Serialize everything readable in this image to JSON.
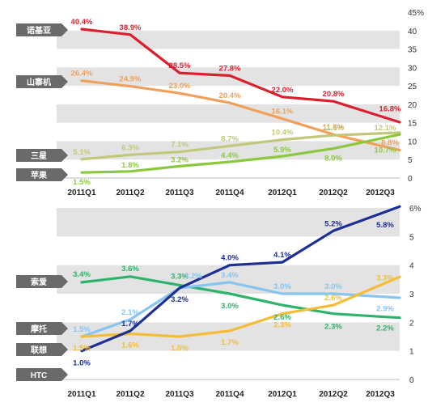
{
  "colors": {
    "band": "#e3e3e3",
    "tag_background": "#6a6a6a",
    "nokia": "#dc1f2e",
    "shanzhai": "#f0a05a",
    "samsung": "#c2c87a",
    "apple": "#8cc83c",
    "sony": "#2db36b",
    "moto": "#86c5ef",
    "lenovo": "#f5bd35",
    "htc": "#1c2f96"
  },
  "chart_data": [
    {
      "type": "line",
      "categories": [
        "2011Q1",
        "2011Q2",
        "2011Q3",
        "2011Q4",
        "2012Q1",
        "2012Q2",
        "2012Q3"
      ],
      "ylim": [
        0,
        45
      ],
      "yticks": [
        "0",
        "5",
        "10",
        "15",
        "20",
        "25",
        "30",
        "35",
        "40",
        "45%"
      ],
      "grid": "alternating bands",
      "legend": "left-side tags",
      "series": [
        {
          "name": "诺基亚",
          "color_key": "nokia",
          "values": [
            40.4,
            38.9,
            28.5,
            27.8,
            22.0,
            20.8,
            16.8
          ],
          "labels": [
            "40.4%",
            "38.9%",
            "28.5%",
            "27.8%",
            "22.0%",
            "20.8%",
            "16.8%"
          ]
        },
        {
          "name": "山寨机",
          "color_key": "shanzhai",
          "values": [
            26.4,
            24.9,
            23.0,
            20.4,
            16.1,
            11.8,
            8.8
          ],
          "labels": [
            "26.4%",
            "24.9%",
            "23.0%",
            "20.4%",
            "16.1%",
            "11.8%",
            "8.8%"
          ]
        },
        {
          "name": "三星",
          "color_key": "samsung",
          "values": [
            5.1,
            6.3,
            7.1,
            8.7,
            10.4,
            11.6,
            12.1
          ],
          "labels": [
            "5.1%",
            "6.3%",
            "7.1%",
            "8.7%",
            "10.4%",
            "11.6%",
            "12.1%"
          ]
        },
        {
          "name": "苹果",
          "color_key": "apple",
          "values": [
            1.5,
            1.8,
            3.2,
            4.4,
            5.9,
            8.0,
            10.7
          ],
          "labels": [
            "1.5%",
            "1.8%",
            "3.2%",
            "4.4%",
            "5.9%",
            "8.0%",
            "10.7%"
          ]
        }
      ]
    },
    {
      "type": "line",
      "categories": [
        "2011Q1",
        "2011Q2",
        "2011Q3",
        "2011Q4",
        "2012Q1",
        "2012Q2",
        "2012Q3"
      ],
      "ylim": [
        0,
        6
      ],
      "yticks": [
        "0",
        "1",
        "2",
        "3",
        "4",
        "5",
        "6%"
      ],
      "grid": "alternating bands",
      "legend": "left-side tags",
      "series": [
        {
          "name": "索爱",
          "color_key": "sony",
          "values": [
            3.4,
            3.6,
            3.3,
            3.0,
            2.6,
            2.3,
            2.2
          ],
          "labels": [
            "3.4%",
            "3.6%",
            "3.3%",
            "3.0%",
            "2.6%",
            "2.3%",
            "2.2%"
          ]
        },
        {
          "name": "摩托",
          "color_key": "moto",
          "values": [
            1.5,
            2.1,
            3.2,
            3.4,
            3.0,
            3.0,
            2.9
          ],
          "labels": [
            "1.5%",
            "2.1%",
            "3.2%",
            "3.4%",
            "3.0%",
            "3.0%",
            "2.9%"
          ]
        },
        {
          "name": "联想",
          "color_key": "lenovo",
          "values": [
            1.5,
            1.6,
            1.5,
            1.7,
            2.3,
            2.6,
            3.3
          ],
          "labels": [
            "1.5%",
            "1.6%",
            "1.5%",
            "1.7%",
            "2.3%",
            "2.6%",
            "3.3%"
          ]
        },
        {
          "name": "HTC",
          "color_key": "htc",
          "values": [
            1.0,
            1.7,
            3.2,
            4.0,
            4.1,
            5.2,
            5.8
          ],
          "labels": [
            "1.0%",
            "1.7%",
            "3.2%",
            "4.0%",
            "4.1%",
            "5.2%",
            "5.8%"
          ]
        }
      ]
    }
  ]
}
